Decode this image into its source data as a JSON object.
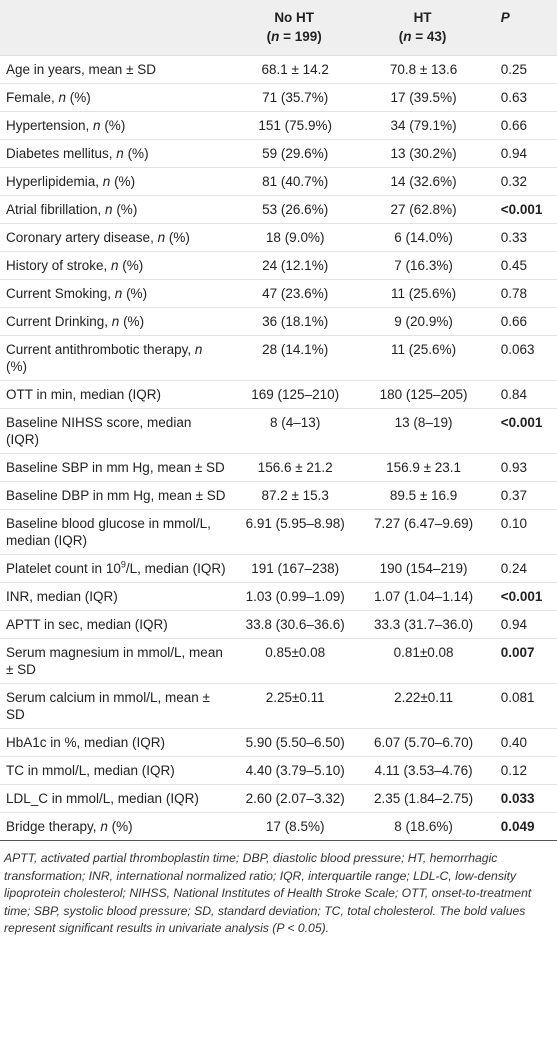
{
  "table": {
    "header": [
      {
        "title": "No HT",
        "subtitle": [
          "(",
          {
            "text": "n",
            "italic": true
          },
          " = 199)"
        ]
      },
      {
        "title": "HT",
        "subtitle": [
          "(",
          {
            "text": "n",
            "italic": true
          },
          " = 43)"
        ]
      },
      {
        "title": "P"
      }
    ],
    "rows": [
      {
        "label": [
          "Age in years, mean ± SD"
        ],
        "cells": [
          "68.1 ± 14.2",
          "70.8 ± 13.6",
          "0.25"
        ]
      },
      {
        "label": [
          "Female, ",
          {
            "text": "n",
            "italic": true
          },
          " (%)"
        ],
        "cells": [
          "71 (35.7%)",
          "17 (39.5%)",
          "0.63"
        ]
      },
      {
        "label": [
          "Hypertension, ",
          {
            "text": "n",
            "italic": true
          },
          " (%)"
        ],
        "cells": [
          "151 (75.9%)",
          "34 (79.1%)",
          "0.66"
        ]
      },
      {
        "label": [
          "Diabetes mellitus, ",
          {
            "text": "n",
            "italic": true
          },
          " (%)"
        ],
        "cells": [
          "59 (29.6%)",
          "13 (30.2%)",
          "0.94"
        ]
      },
      {
        "label": [
          "Hyperlipidemia, ",
          {
            "text": "n",
            "italic": true
          },
          " (%)"
        ],
        "cells": [
          "81 (40.7%)",
          "14 (32.6%)",
          "0.32"
        ]
      },
      {
        "label": [
          "Atrial fibrillation, ",
          {
            "text": "n",
            "italic": true
          },
          " (%)"
        ],
        "cells": [
          "53 (26.6%)",
          "27 (62.8%)",
          "<0.001"
        ],
        "bold": true
      },
      {
        "label": [
          "Coronary artery disease, ",
          {
            "text": "n",
            "italic": true
          },
          " (%)"
        ],
        "cells": [
          "18 (9.0%)",
          "6 (14.0%)",
          "0.33"
        ]
      },
      {
        "label": [
          "History of stroke, ",
          {
            "text": "n",
            "italic": true
          },
          " (%)"
        ],
        "cells": [
          "24 (12.1%)",
          "7 (16.3%)",
          "0.45"
        ]
      },
      {
        "label": [
          "Current Smoking, ",
          {
            "text": "n",
            "italic": true
          },
          " (%)"
        ],
        "cells": [
          "47 (23.6%)",
          "11 (25.6%)",
          "0.78"
        ]
      },
      {
        "label": [
          "Current Drinking, ",
          {
            "text": "n",
            "italic": true
          },
          " (%)"
        ],
        "cells": [
          "36 (18.1%)",
          "9 (20.9%)",
          "0.66"
        ]
      },
      {
        "label": [
          "Current antithrombotic therapy, ",
          {
            "text": "n",
            "italic": true
          },
          " (%)"
        ],
        "cells": [
          "28 (14.1%)",
          "11 (25.6%)",
          "0.063"
        ]
      },
      {
        "label": [
          "OTT in min, median (IQR)"
        ],
        "cells": [
          "169 (125–210)",
          "180 (125–205)",
          "0.84"
        ]
      },
      {
        "label": [
          "Baseline NIHSS score, median (IQR)"
        ],
        "cells": [
          "8 (4–13)",
          "13 (8–19)",
          "<0.001"
        ],
        "bold": true
      },
      {
        "label": [
          "Baseline SBP in mm Hg, mean ± SD"
        ],
        "cells": [
          "156.6 ± 21.2",
          "156.9 ± 23.1",
          "0.93"
        ]
      },
      {
        "label": [
          "Baseline DBP in mm Hg, mean ± SD"
        ],
        "cells": [
          "87.2 ± 15.3",
          "89.5 ± 16.9",
          "0.37"
        ]
      },
      {
        "label": [
          "Baseline blood glucose in mmol/L, median (IQR)"
        ],
        "cells": [
          "6.91 (5.95–8.98)",
          "7.27 (6.47–9.69)",
          "0.10"
        ]
      },
      {
        "label": [
          "Platelet count in 10",
          {
            "text": "9",
            "sup": true
          },
          "/L, median (IQR)"
        ],
        "cells": [
          "191 (167–238)",
          "190 (154–219)",
          "0.24"
        ]
      },
      {
        "label": [
          "INR, median (IQR)"
        ],
        "cells": [
          "1.03 (0.99–1.09)",
          "1.07 (1.04–1.14)",
          "<0.001"
        ],
        "bold": true
      },
      {
        "label": [
          "APTT in sec, median (IQR)"
        ],
        "cells": [
          "33.8 (30.6–36.6)",
          "33.3 (31.7–36.0)",
          "0.94"
        ]
      },
      {
        "label": [
          "Serum magnesium in mmol/L, mean ± SD"
        ],
        "cells": [
          "0.85±0.08",
          "0.81±0.08",
          "0.007"
        ],
        "bold": true
      },
      {
        "label": [
          "Serum calcium in mmol/L, mean ± SD"
        ],
        "cells": [
          "2.25±0.11",
          "2.22±0.11",
          "0.081"
        ]
      },
      {
        "label": [
          "HbA1c in %, median (IQR)"
        ],
        "cells": [
          "5.90 (5.50–6.50)",
          "6.07 (5.70–6.70)",
          "0.40"
        ]
      },
      {
        "label": [
          "TC in mmol/L, median (IQR)"
        ],
        "cells": [
          "4.40 (3.79–5.10)",
          "4.11 (3.53–4.76)",
          "0.12"
        ]
      },
      {
        "label": [
          "LDL_C in mmol/L, median (IQR)"
        ],
        "cells": [
          "2.60 (2.07–3.32)",
          "2.35 (1.84–2.75)",
          "0.033"
        ],
        "bold": true
      },
      {
        "label": [
          "Bridge therapy, ",
          {
            "text": "n",
            "italic": true
          },
          " (%)"
        ],
        "cells": [
          "17 (8.5%)",
          "8 (18.6%)",
          "0.049"
        ],
        "bold": true
      }
    ],
    "footnote": "APTT, activated partial thromboplastin time; DBP, diastolic blood pressure; HT, hemorrhagic transformation; INR, international normalized ratio; IQR, interquartile range; LDL-C, low-density lipoprotein cholesterol; NIHSS, National Institutes of Health Stroke Scale; OTT, onset-to-treatment time; SBP, systolic blood pressure; SD, standard deviation; TC, total cholesterol. The bold values represent significant results in univariate analysis (P < 0.05)."
  }
}
